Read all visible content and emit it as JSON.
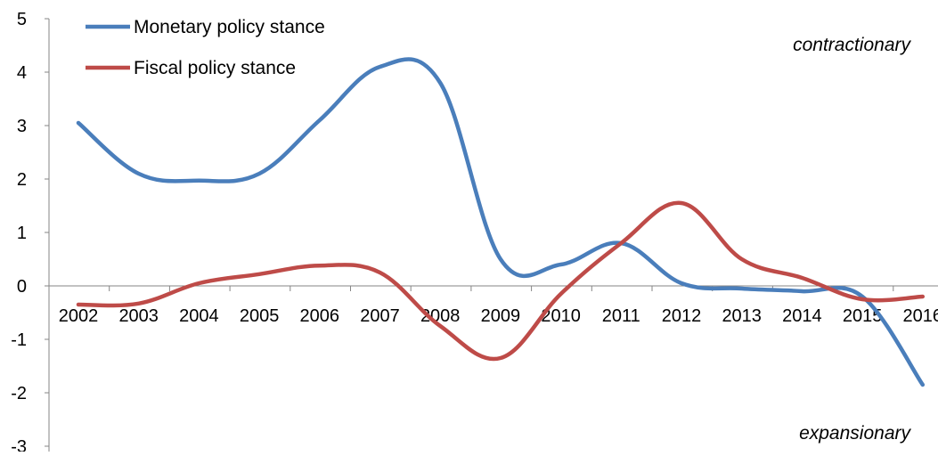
{
  "chart_data": {
    "type": "line",
    "title": "",
    "xlabel": "",
    "ylabel": "",
    "categories": [
      "2002",
      "2003",
      "2004",
      "2005",
      "2006",
      "2007",
      "2008",
      "2009",
      "2010",
      "2011",
      "2012",
      "2013",
      "2014",
      "2015",
      "2016"
    ],
    "series": [
      {
        "name": "Monetary policy stance",
        "color": "#4a7ebb",
        "values": [
          3.05,
          2.1,
          1.97,
          2.1,
          3.1,
          4.1,
          3.8,
          0.5,
          0.4,
          0.8,
          0.05,
          -0.05,
          -0.1,
          -0.2,
          -1.85
        ]
      },
      {
        "name": "Fiscal policy stance",
        "color": "#be4b48",
        "values": [
          -0.35,
          -0.33,
          0.05,
          0.22,
          0.38,
          0.25,
          -0.75,
          -1.35,
          -0.15,
          0.8,
          1.55,
          0.5,
          0.15,
          -0.25,
          -0.2
        ]
      }
    ],
    "yaxis": {
      "min": -3,
      "max": 5,
      "ticks": [
        "5",
        "4",
        "3",
        "2",
        "1",
        "0",
        "-1",
        "-2",
        "-3"
      ]
    },
    "grid": false,
    "legend": "top-left",
    "annotations": {
      "top": "contractionary",
      "bottom": "expansionary"
    }
  }
}
